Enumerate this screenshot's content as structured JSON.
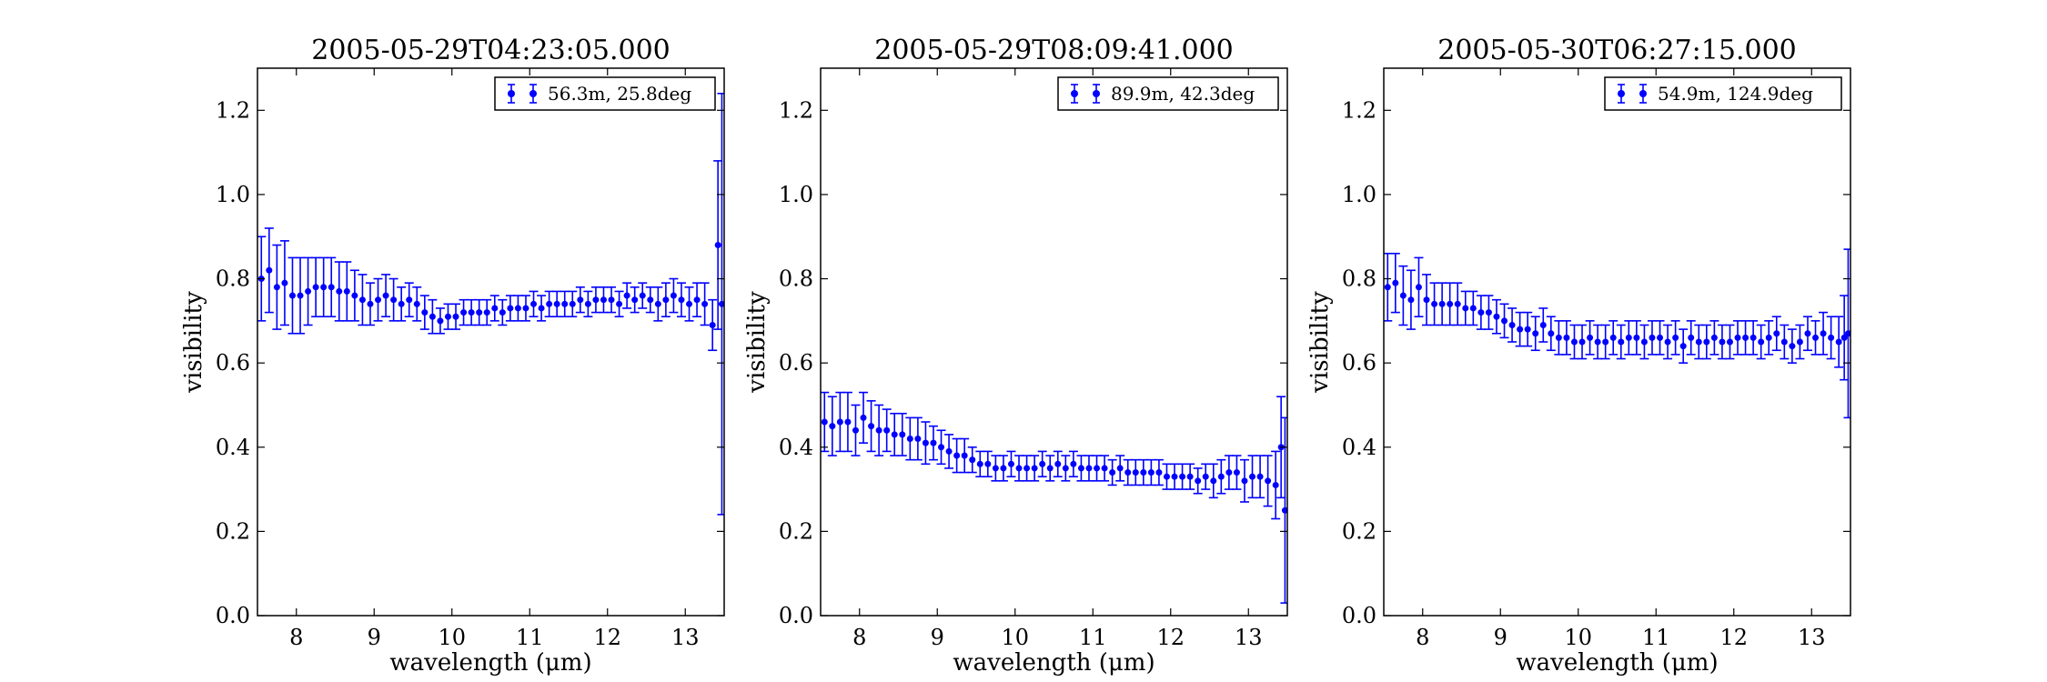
{
  "figure": {
    "background": "#ffffff",
    "series_color": "#0000ff"
  },
  "chart_data": [
    {
      "type": "scatter",
      "title": "2005-05-29T04:23:05.000",
      "xlabel": "wavelength (μm)",
      "ylabel": "visibility",
      "xlim": [
        7.5,
        13.5
      ],
      "ylim": [
        0.0,
        1.3
      ],
      "xticks": [
        "8",
        "9",
        "10",
        "11",
        "12",
        "13"
      ],
      "yticks": [
        "0.0",
        "0.2",
        "0.4",
        "0.6",
        "0.8",
        "1.0",
        "1.2"
      ],
      "legend": {
        "label": "56.3m, 25.8deg",
        "position": "upper right"
      },
      "grid": false,
      "series": [
        {
          "name": "56.3m, 25.8deg",
          "color": "#0000ff",
          "error_bars": true,
          "x": [
            7.55,
            7.65,
            7.75,
            7.85,
            7.95,
            8.05,
            8.15,
            8.25,
            8.35,
            8.45,
            8.55,
            8.65,
            8.75,
            8.85,
            8.95,
            9.05,
            9.15,
            9.25,
            9.35,
            9.45,
            9.55,
            9.65,
            9.75,
            9.85,
            9.95,
            10.05,
            10.15,
            10.25,
            10.35,
            10.45,
            10.55,
            10.65,
            10.75,
            10.85,
            10.95,
            11.05,
            11.15,
            11.25,
            11.35,
            11.45,
            11.55,
            11.65,
            11.75,
            11.85,
            11.95,
            12.05,
            12.15,
            12.25,
            12.35,
            12.45,
            12.55,
            12.65,
            12.75,
            12.85,
            12.95,
            13.05,
            13.15,
            13.25,
            13.35,
            13.42,
            13.47
          ],
          "y": [
            0.8,
            0.82,
            0.78,
            0.79,
            0.76,
            0.76,
            0.77,
            0.78,
            0.78,
            0.78,
            0.77,
            0.77,
            0.76,
            0.75,
            0.74,
            0.75,
            0.76,
            0.75,
            0.74,
            0.75,
            0.74,
            0.72,
            0.71,
            0.7,
            0.71,
            0.71,
            0.72,
            0.72,
            0.72,
            0.72,
            0.73,
            0.72,
            0.73,
            0.73,
            0.73,
            0.74,
            0.73,
            0.74,
            0.74,
            0.74,
            0.74,
            0.75,
            0.74,
            0.75,
            0.75,
            0.75,
            0.74,
            0.76,
            0.75,
            0.76,
            0.75,
            0.74,
            0.75,
            0.76,
            0.75,
            0.74,
            0.75,
            0.74,
            0.69,
            0.88,
            0.74
          ],
          "yerr": [
            0.1,
            0.1,
            0.1,
            0.1,
            0.09,
            0.09,
            0.08,
            0.07,
            0.07,
            0.07,
            0.07,
            0.07,
            0.06,
            0.06,
            0.05,
            0.05,
            0.05,
            0.05,
            0.04,
            0.04,
            0.04,
            0.04,
            0.04,
            0.03,
            0.03,
            0.03,
            0.03,
            0.03,
            0.03,
            0.03,
            0.03,
            0.03,
            0.03,
            0.03,
            0.03,
            0.03,
            0.03,
            0.03,
            0.03,
            0.03,
            0.03,
            0.03,
            0.03,
            0.03,
            0.03,
            0.03,
            0.03,
            0.03,
            0.03,
            0.03,
            0.03,
            0.04,
            0.04,
            0.04,
            0.04,
            0.04,
            0.04,
            0.05,
            0.06,
            0.2,
            0.5
          ]
        }
      ]
    },
    {
      "type": "scatter",
      "title": "2005-05-29T08:09:41.000",
      "xlabel": "wavelength (μm)",
      "ylabel": "visibility",
      "xlim": [
        7.5,
        13.5
      ],
      "ylim": [
        0.0,
        1.3
      ],
      "xticks": [
        "8",
        "9",
        "10",
        "11",
        "12",
        "13"
      ],
      "yticks": [
        "0.0",
        "0.2",
        "0.4",
        "0.6",
        "0.8",
        "1.0",
        "1.2"
      ],
      "legend": {
        "label": "89.9m, 42.3deg",
        "position": "upper right"
      },
      "grid": false,
      "series": [
        {
          "name": "89.9m, 42.3deg",
          "color": "#0000ff",
          "error_bars": true,
          "x": [
            7.55,
            7.65,
            7.75,
            7.85,
            7.95,
            8.05,
            8.15,
            8.25,
            8.35,
            8.45,
            8.55,
            8.65,
            8.75,
            8.85,
            8.95,
            9.05,
            9.15,
            9.25,
            9.35,
            9.45,
            9.55,
            9.65,
            9.75,
            9.85,
            9.95,
            10.05,
            10.15,
            10.25,
            10.35,
            10.45,
            10.55,
            10.65,
            10.75,
            10.85,
            10.95,
            11.05,
            11.15,
            11.25,
            11.35,
            11.45,
            11.55,
            11.65,
            11.75,
            11.85,
            11.95,
            12.05,
            12.15,
            12.25,
            12.35,
            12.45,
            12.55,
            12.65,
            12.75,
            12.85,
            12.95,
            13.05,
            13.15,
            13.25,
            13.35,
            13.42,
            13.47
          ],
          "y": [
            0.46,
            0.45,
            0.46,
            0.46,
            0.44,
            0.47,
            0.45,
            0.44,
            0.44,
            0.43,
            0.43,
            0.42,
            0.42,
            0.41,
            0.41,
            0.4,
            0.39,
            0.38,
            0.38,
            0.37,
            0.36,
            0.36,
            0.35,
            0.35,
            0.36,
            0.35,
            0.35,
            0.35,
            0.36,
            0.35,
            0.36,
            0.35,
            0.36,
            0.35,
            0.35,
            0.35,
            0.35,
            0.34,
            0.35,
            0.34,
            0.34,
            0.34,
            0.34,
            0.34,
            0.33,
            0.33,
            0.33,
            0.33,
            0.32,
            0.33,
            0.32,
            0.33,
            0.34,
            0.34,
            0.32,
            0.33,
            0.33,
            0.32,
            0.31,
            0.4,
            0.25
          ],
          "yerr": [
            0.07,
            0.07,
            0.07,
            0.07,
            0.06,
            0.06,
            0.06,
            0.06,
            0.05,
            0.05,
            0.05,
            0.05,
            0.05,
            0.05,
            0.04,
            0.04,
            0.04,
            0.04,
            0.04,
            0.03,
            0.03,
            0.03,
            0.03,
            0.03,
            0.03,
            0.03,
            0.03,
            0.03,
            0.03,
            0.03,
            0.03,
            0.03,
            0.03,
            0.03,
            0.03,
            0.03,
            0.03,
            0.03,
            0.03,
            0.03,
            0.03,
            0.03,
            0.03,
            0.03,
            0.03,
            0.03,
            0.03,
            0.03,
            0.03,
            0.03,
            0.04,
            0.04,
            0.04,
            0.04,
            0.05,
            0.05,
            0.05,
            0.06,
            0.08,
            0.12,
            0.22
          ]
        }
      ]
    },
    {
      "type": "scatter",
      "title": "2005-05-30T06:27:15.000",
      "xlabel": "wavelength (μm)",
      "ylabel": "visibility",
      "xlim": [
        7.5,
        13.5
      ],
      "ylim": [
        0.0,
        1.3
      ],
      "xticks": [
        "8",
        "9",
        "10",
        "11",
        "12",
        "13"
      ],
      "yticks": [
        "0.0",
        "0.2",
        "0.4",
        "0.6",
        "0.8",
        "1.0",
        "1.2"
      ],
      "legend": {
        "label": "54.9m, 124.9deg",
        "position": "upper right"
      },
      "grid": false,
      "series": [
        {
          "name": "54.9m, 124.9deg",
          "color": "#0000ff",
          "error_bars": true,
          "x": [
            7.55,
            7.65,
            7.75,
            7.85,
            7.95,
            8.05,
            8.15,
            8.25,
            8.35,
            8.45,
            8.55,
            8.65,
            8.75,
            8.85,
            8.95,
            9.05,
            9.15,
            9.25,
            9.35,
            9.45,
            9.55,
            9.65,
            9.75,
            9.85,
            9.95,
            10.05,
            10.15,
            10.25,
            10.35,
            10.45,
            10.55,
            10.65,
            10.75,
            10.85,
            10.95,
            11.05,
            11.15,
            11.25,
            11.35,
            11.45,
            11.55,
            11.65,
            11.75,
            11.85,
            11.95,
            12.05,
            12.15,
            12.25,
            12.35,
            12.45,
            12.55,
            12.65,
            12.75,
            12.85,
            12.95,
            13.05,
            13.15,
            13.25,
            13.35,
            13.42,
            13.47
          ],
          "y": [
            0.78,
            0.79,
            0.76,
            0.75,
            0.78,
            0.75,
            0.74,
            0.74,
            0.74,
            0.74,
            0.73,
            0.73,
            0.72,
            0.72,
            0.71,
            0.7,
            0.69,
            0.68,
            0.68,
            0.67,
            0.69,
            0.67,
            0.66,
            0.66,
            0.65,
            0.65,
            0.66,
            0.65,
            0.65,
            0.66,
            0.65,
            0.66,
            0.66,
            0.65,
            0.66,
            0.66,
            0.65,
            0.66,
            0.64,
            0.66,
            0.65,
            0.65,
            0.66,
            0.65,
            0.65,
            0.66,
            0.66,
            0.66,
            0.65,
            0.66,
            0.67,
            0.65,
            0.64,
            0.65,
            0.67,
            0.66,
            0.67,
            0.66,
            0.65,
            0.66,
            0.67
          ],
          "yerr": [
            0.08,
            0.07,
            0.07,
            0.07,
            0.07,
            0.06,
            0.05,
            0.05,
            0.05,
            0.05,
            0.04,
            0.04,
            0.04,
            0.04,
            0.04,
            0.04,
            0.04,
            0.04,
            0.04,
            0.04,
            0.04,
            0.04,
            0.04,
            0.04,
            0.04,
            0.04,
            0.04,
            0.04,
            0.04,
            0.04,
            0.04,
            0.04,
            0.04,
            0.04,
            0.04,
            0.04,
            0.04,
            0.04,
            0.04,
            0.04,
            0.04,
            0.04,
            0.04,
            0.04,
            0.04,
            0.04,
            0.04,
            0.04,
            0.04,
            0.04,
            0.04,
            0.04,
            0.04,
            0.04,
            0.04,
            0.04,
            0.05,
            0.05,
            0.06,
            0.1,
            0.2
          ]
        }
      ]
    }
  ]
}
